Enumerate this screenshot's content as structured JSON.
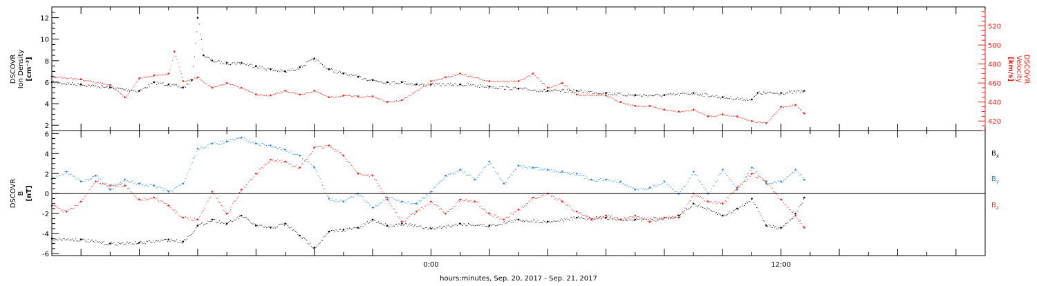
{
  "colors": {
    "black": "#000000",
    "red": "#e8201c",
    "blue": "#1f82d6"
  },
  "xaxis": {
    "label": "hours:minutes, Sep. 20, 2017 - Sep. 21, 2017",
    "range_hours": [
      -13,
      19
    ],
    "tick_labels": [
      {
        "hour": 0,
        "text": "0:00"
      },
      {
        "hour": 12,
        "text": "12:00"
      }
    ],
    "major_tick_hours": [
      -12,
      -10,
      -8,
      -6,
      -4,
      -2,
      0,
      2,
      4,
      6,
      8,
      10,
      12,
      14,
      16,
      18
    ]
  },
  "chart_data": [
    {
      "type": "scatter",
      "title": "",
      "ylabel_left": [
        "DSCOVR",
        "Ion Density",
        "[cm⁻³]"
      ],
      "ylabel_right": [
        "DSCOVR",
        "Velocity",
        "[km/s]"
      ],
      "ylim_left": [
        1.5,
        13
      ],
      "ylim_right": [
        410,
        540
      ],
      "yticks_left": [
        2,
        4,
        6,
        8,
        10,
        12
      ],
      "yticks_right": [
        420,
        440,
        460,
        480,
        500,
        520
      ],
      "series": [
        {
          "name": "",
          "color": "black",
          "axis": "left",
          "x": [
            -13,
            -12,
            -11,
            -10,
            -9.5,
            -9,
            -8.5,
            -8.2,
            -8.0,
            -7.8,
            -7.5,
            -7,
            -6.5,
            -6,
            -5.5,
            -5,
            -4.5,
            -4,
            -3.5,
            -3,
            -2.5,
            -2,
            -1.5,
            -1,
            -0.5,
            0,
            1,
            2,
            3,
            4,
            5,
            6,
            7,
            8,
            9,
            10,
            11,
            11.2,
            12,
            12.8
          ],
          "y": [
            6.0,
            5.8,
            5.5,
            5.2,
            6.0,
            5.8,
            5.5,
            6.2,
            12.0,
            8.5,
            8.0,
            7.8,
            7.8,
            7.5,
            7.2,
            7.0,
            7.4,
            8.2,
            7.2,
            6.8,
            6.5,
            6.2,
            6.0,
            6.0,
            5.8,
            5.8,
            5.8,
            5.6,
            5.4,
            5.2,
            5.2,
            5.0,
            4.8,
            4.8,
            5.0,
            4.6,
            4.4,
            5.0,
            5.0,
            5.2
          ]
        },
        {
          "name": "",
          "color": "red",
          "axis": "right",
          "x": [
            -13,
            -12,
            -11,
            -10.5,
            -10,
            -9.5,
            -9,
            -8.8,
            -8.5,
            -8,
            -7.5,
            -7,
            -6.5,
            -6,
            -5.5,
            -5,
            -4.5,
            -4,
            -3.5,
            -3,
            -2.5,
            -2,
            -1.5,
            -1,
            0,
            0.5,
            1,
            2,
            3,
            3.5,
            4,
            4.5,
            5,
            6,
            6.5,
            7,
            7.5,
            8,
            8.5,
            9,
            9.5,
            10,
            10.5,
            11,
            11.5,
            12,
            12.5,
            12.8
          ],
          "y": [
            467,
            464,
            458,
            445,
            465,
            468,
            470,
            493,
            462,
            466,
            455,
            460,
            455,
            448,
            447,
            452,
            448,
            452,
            445,
            447,
            446,
            446,
            440,
            442,
            462,
            466,
            470,
            462,
            462,
            470,
            455,
            460,
            448,
            447,
            440,
            436,
            436,
            432,
            430,
            432,
            425,
            427,
            425,
            420,
            418,
            435,
            437,
            428
          ]
        }
      ]
    },
    {
      "type": "scatter",
      "title": "",
      "ylabel_left": [
        "DSCOVR",
        "B",
        "[nT]"
      ],
      "ylim": [
        -6.2,
        6.3
      ],
      "yticks": [
        -6,
        -4,
        -2,
        0,
        2,
        4,
        6
      ],
      "zero_line": true,
      "legend": {
        "placement": "right",
        "entries": [
          {
            "text": "B",
            "sub": "x",
            "color": "black"
          },
          {
            "text": "B",
            "sub": "y",
            "color": "blue"
          },
          {
            "text": "B",
            "sub": "z",
            "color": "red"
          }
        ]
      },
      "series": [
        {
          "name": "Bx",
          "color": "black",
          "x": [
            -13,
            -12,
            -11,
            -10,
            -9,
            -8.5,
            -8,
            -7.5,
            -7,
            -6.5,
            -6,
            -5.5,
            -5,
            -4.5,
            -4,
            -3.5,
            -3,
            -2.5,
            -2,
            -1.5,
            -1,
            0,
            1,
            2,
            3,
            4,
            5,
            6,
            7,
            8,
            8.5,
            9,
            10,
            10.5,
            11,
            11.5,
            12,
            12.5,
            12.8
          ],
          "y": [
            -4.5,
            -4.6,
            -5.0,
            -4.9,
            -4.6,
            -4.8,
            -3.2,
            -2.6,
            -3.0,
            -2.2,
            -3.2,
            -3.4,
            -3.0,
            -4.2,
            -5.4,
            -3.8,
            -3.6,
            -3.4,
            -2.6,
            -3.2,
            -3.0,
            -3.5,
            -3.0,
            -3.2,
            -2.6,
            -2.8,
            -2.4,
            -2.4,
            -2.6,
            -2.4,
            -2.2,
            -1.0,
            -2.2,
            -1.5,
            -0.5,
            -3.2,
            -3.4,
            -2.0,
            -0.4
          ]
        },
        {
          "name": "By",
          "color": "blue",
          "x": [
            -13,
            -12.5,
            -12,
            -11.5,
            -11,
            -10.5,
            -10,
            -9.5,
            -9,
            -8.5,
            -8,
            -7.5,
            -7,
            -6.5,
            -6,
            -5.5,
            -5,
            -4.5,
            -4,
            -3.5,
            -3,
            -2.5,
            -2,
            -1.5,
            -1,
            -0.5,
            0,
            0.5,
            1,
            1.5,
            2,
            2.5,
            3,
            3.5,
            4,
            4.5,
            5,
            5.5,
            6,
            6.5,
            7,
            7.5,
            8,
            8.5,
            9,
            9.5,
            10,
            10.5,
            11,
            11.5,
            12,
            12.5,
            12.8
          ],
          "y": [
            1.5,
            2.2,
            1.2,
            1.8,
            0.4,
            1.4,
            1.0,
            0.8,
            0.2,
            1.0,
            4.5,
            5.0,
            5.2,
            5.6,
            5.0,
            4.8,
            4.4,
            3.8,
            2.6,
            -0.5,
            -0.8,
            0.0,
            -1.4,
            -0.4,
            -0.8,
            -1.0,
            0.2,
            1.8,
            2.4,
            1.4,
            3.2,
            1.0,
            2.8,
            2.6,
            2.4,
            2.2,
            2.0,
            1.4,
            1.4,
            1.2,
            0.4,
            0.6,
            1.2,
            0.0,
            2.2,
            0.0,
            2.4,
            0.4,
            2.6,
            1.0,
            1.2,
            2.4,
            1.4
          ]
        },
        {
          "name": "Bz",
          "color": "red",
          "x": [
            -13,
            -12.5,
            -12,
            -11.5,
            -11,
            -10.5,
            -10,
            -9.5,
            -9,
            -8.5,
            -8,
            -7.5,
            -7,
            -6.5,
            -6,
            -5.5,
            -5,
            -4.5,
            -4,
            -3.5,
            -3,
            -2.5,
            -2,
            -1.5,
            -1,
            -0.5,
            0,
            0.5,
            1,
            1.5,
            2,
            2.5,
            3,
            3.5,
            4,
            4.5,
            5,
            5.5,
            6,
            6.5,
            7,
            7.5,
            8,
            8.5,
            9,
            9.5,
            10,
            10.5,
            11,
            11.5,
            12,
            12.5,
            12.8
          ],
          "y": [
            -1.2,
            -1.8,
            -0.8,
            1.2,
            0.8,
            0.8,
            -0.6,
            -0.4,
            -1.2,
            -2.4,
            -2.6,
            0.2,
            -2.0,
            0.4,
            2.0,
            3.4,
            3.2,
            2.6,
            4.6,
            4.8,
            3.8,
            2.0,
            1.8,
            -0.6,
            -2.8,
            -1.8,
            -0.8,
            -2.0,
            -0.6,
            -0.8,
            -2.0,
            -2.6,
            -1.6,
            -0.4,
            0.0,
            -0.8,
            -1.8,
            -2.6,
            -2.2,
            -2.6,
            -2.2,
            -2.8,
            -2.4,
            -2.4,
            0.0,
            -0.8,
            -1.0,
            0.6,
            2.0,
            1.2,
            -0.6,
            -2.2,
            -3.4
          ]
        }
      ]
    }
  ]
}
